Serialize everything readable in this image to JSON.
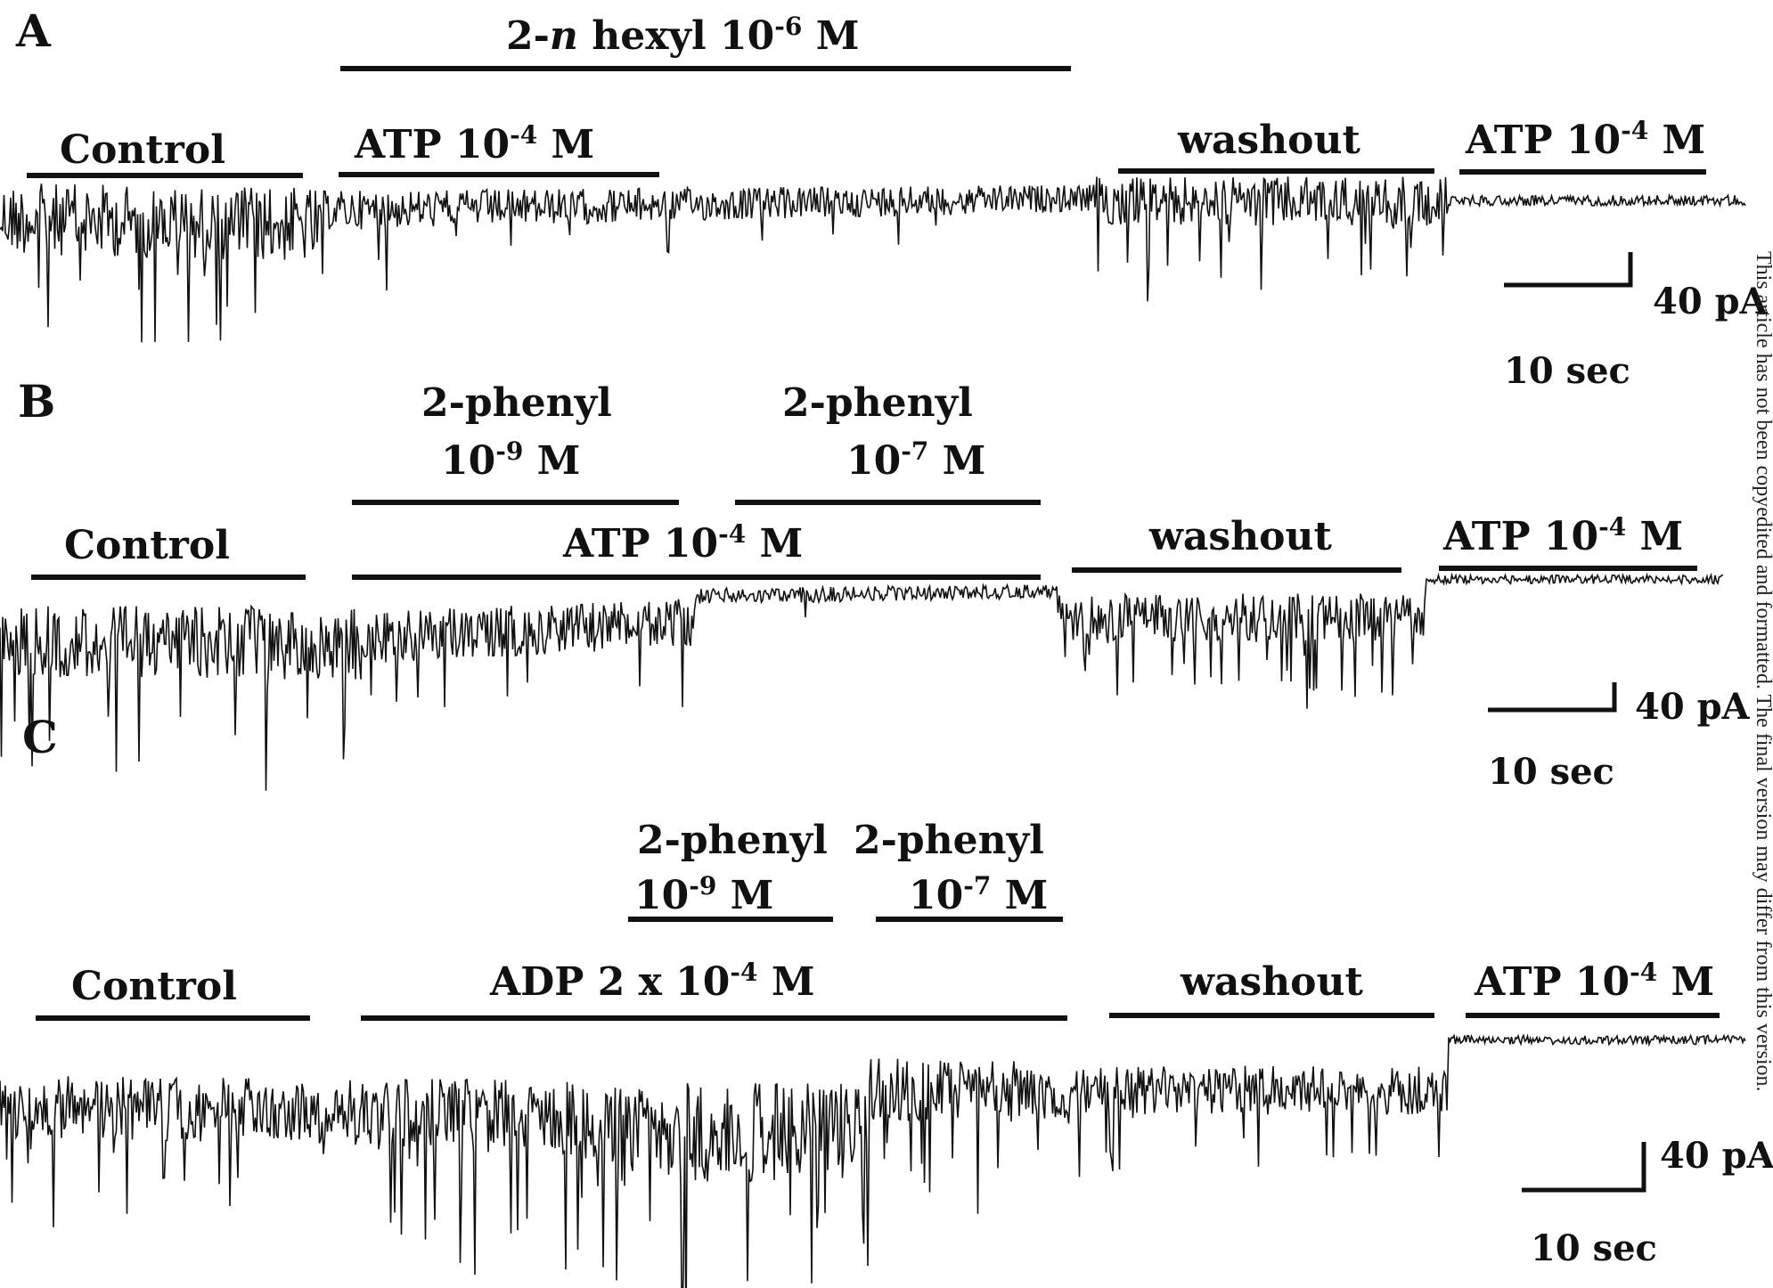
{
  "panels": [
    {
      "letter": "A",
      "treatment": "2-n hexyl 10-6 M",
      "labels": {
        "control": "Control",
        "agonist": "ATP 10-4 M",
        "washout": "washout",
        "final": "ATP 10-4 M"
      },
      "scale": {
        "current": "40 pA",
        "time": "10 sec"
      }
    },
    {
      "letter": "B",
      "treatments": [
        {
          "name": "2-phenyl",
          "conc": "10-9 M"
        },
        {
          "name": "2-phenyl",
          "conc": "10-7 M"
        }
      ],
      "labels": {
        "control": "Control",
        "agonist": "ATP 10-4 M",
        "washout": "washout",
        "final": "ATP 10-4 M"
      },
      "scale": {
        "current": "40 pA",
        "time": "10 sec"
      }
    },
    {
      "letter": "C",
      "treatments": [
        {
          "name": "2-phenyl",
          "conc": "10-9 M"
        },
        {
          "name": "2-phenyl",
          "conc": "10-7 M"
        }
      ],
      "labels": {
        "control": "Control",
        "agonist": "ADP 2 x 10-4 M",
        "washout": "washout",
        "final": "ATP 10-4 M"
      },
      "scale": {
        "current": "40 pA",
        "time": "10 sec"
      }
    }
  ],
  "side_note": "This article has not been copyedited and formatted. The final version may differ from this version."
}
